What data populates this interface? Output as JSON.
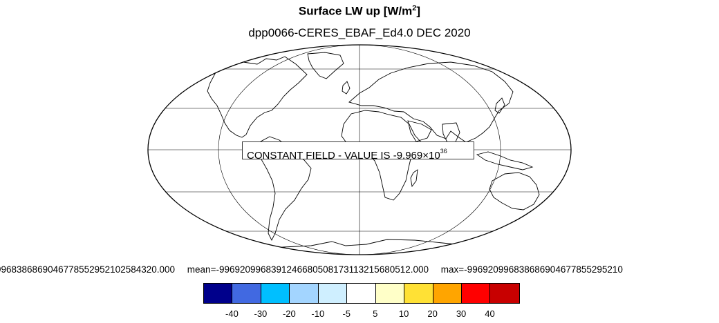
{
  "title_main": "Surface LW up [W/m",
  "title_sup": "2",
  "title_end": "]",
  "subtitle": "dpp0066-CERES_EBAF_Ed4.0  DEC 2020",
  "constant_field": {
    "text": "CONSTANT FIELD - VALUE IS -9.969×10",
    "exponent": "36"
  },
  "stats": {
    "min": "9968386869046778552952102584320.000",
    "mean": "mean=-996920996839124668050817311321568051 2.000",
    "max": "max=-996920996838686904677855295210"
  },
  "labelbar": {
    "colors": [
      "#00008b",
      "#4169e1",
      "#00bfff",
      "#a3d5ff",
      "#cfefff",
      "#ffffff",
      "#ffffc8",
      "#ffe135",
      "#ffa500",
      "#ff0000",
      "#c80000"
    ],
    "ticks": [
      "-40",
      "-30",
      "-20",
      "-10",
      "-5",
      "5",
      "10",
      "20",
      "30",
      "40"
    ]
  },
  "projection": "mollweide"
}
